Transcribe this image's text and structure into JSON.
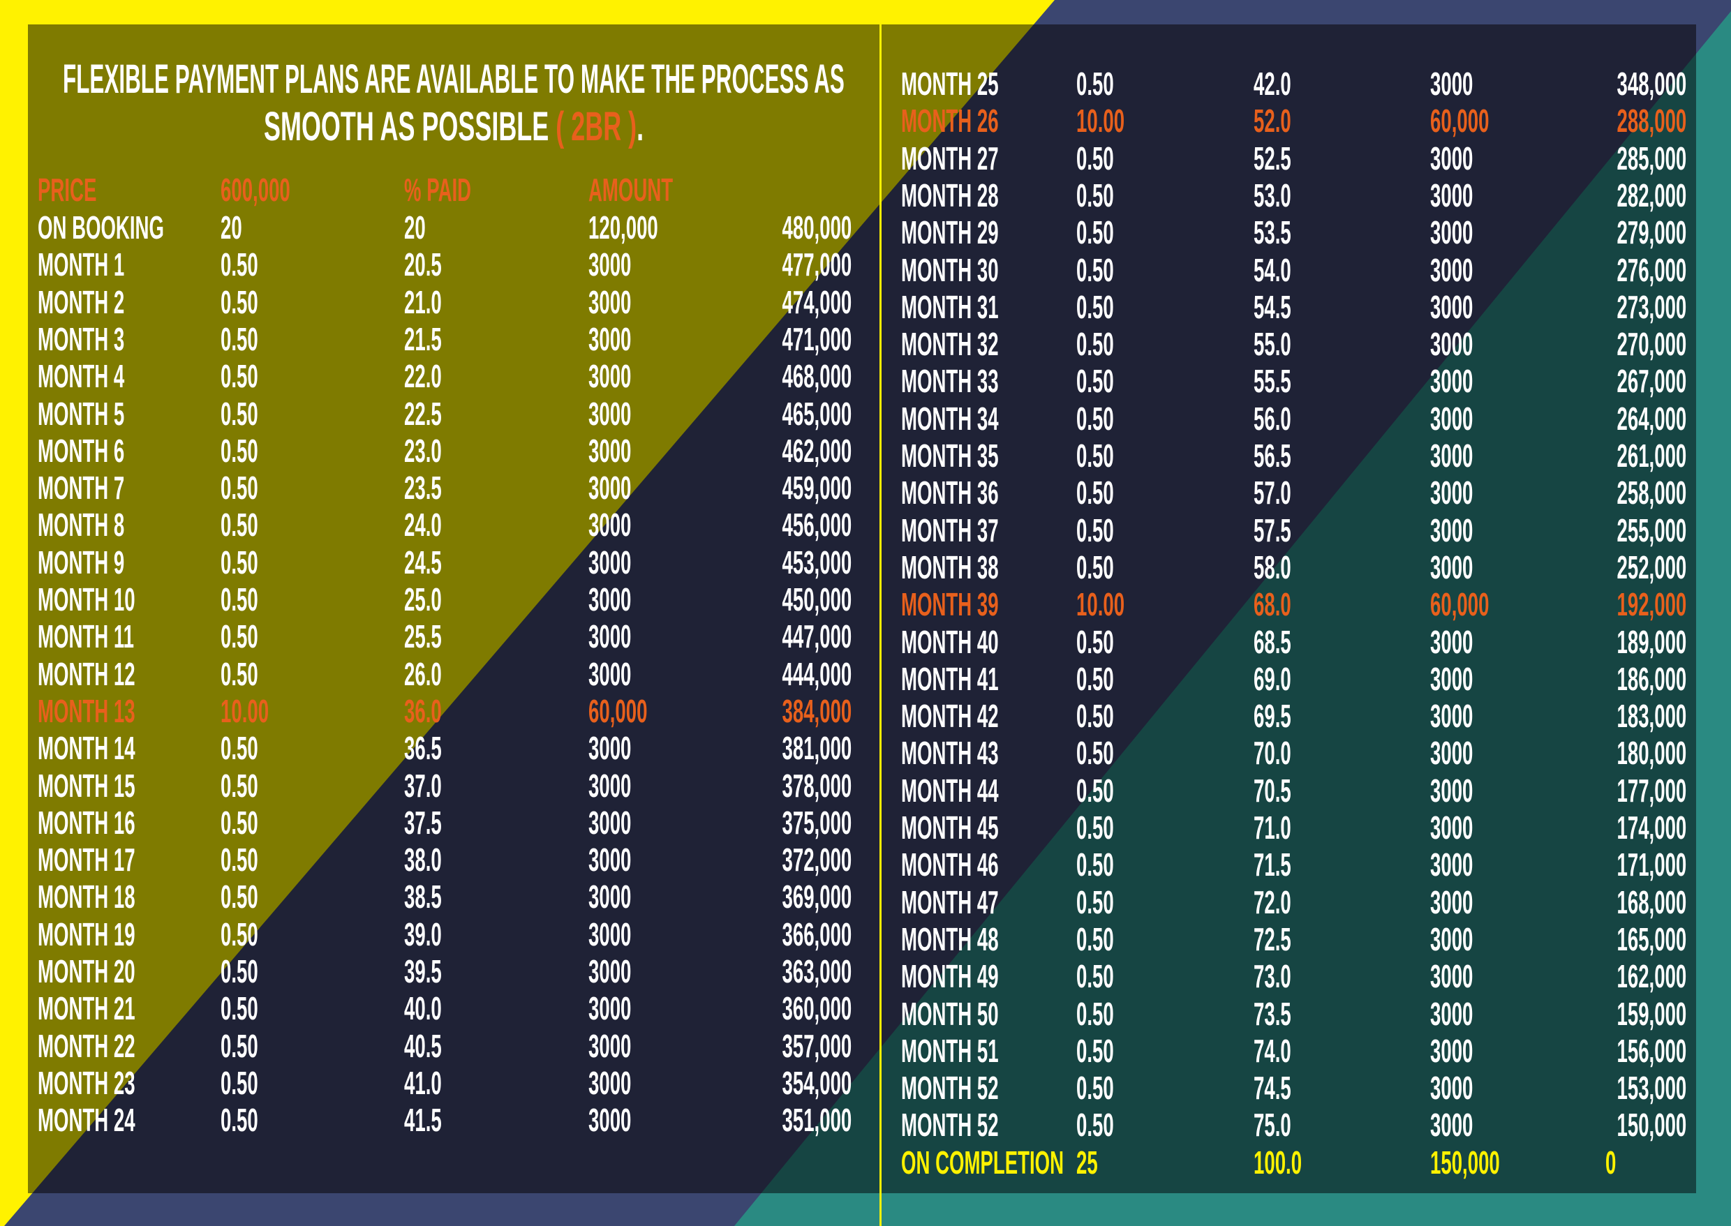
{
  "title": {
    "line1": "FLEXIBLE PAYMENT PLANS ARE AVAILABLE TO MAKE THE PROCESS AS",
    "line2": "SMOOTH AS POSSIBLE",
    "unit_type": "( 2BR )",
    "period": "."
  },
  "colors": {
    "accent_orange": "#e8601c",
    "accent_yellow": "#fff200",
    "olive": "#7f7b00",
    "navy": "#1f2236",
    "teal": "#164543"
  },
  "header": [
    "PRICE",
    "600,000",
    "% PAID",
    "AMOUNT",
    ""
  ],
  "left_rows": [
    {
      "cells": [
        "ON BOOKING",
        "20",
        "20",
        "120,000",
        "480,000"
      ]
    },
    {
      "cells": [
        "MONTH 1",
        "0.50",
        "20.5",
        "3000",
        "477,000"
      ]
    },
    {
      "cells": [
        "MONTH 2",
        "0.50",
        "21.0",
        "3000",
        "474,000"
      ]
    },
    {
      "cells": [
        "MONTH 3",
        "0.50",
        "21.5",
        "3000",
        "471,000"
      ]
    },
    {
      "cells": [
        "MONTH 4",
        "0.50",
        "22.0",
        "3000",
        "468,000"
      ]
    },
    {
      "cells": [
        "MONTH 5",
        "0.50",
        "22.5",
        "3000",
        "465,000"
      ]
    },
    {
      "cells": [
        "MONTH 6",
        "0.50",
        "23.0",
        "3000",
        "462,000"
      ]
    },
    {
      "cells": [
        "MONTH 7",
        "0.50",
        "23.5",
        "3000",
        "459,000"
      ]
    },
    {
      "cells": [
        "MONTH 8",
        "0.50",
        "24.0",
        "3000",
        "456,000"
      ]
    },
    {
      "cells": [
        "MONTH 9",
        "0.50",
        "24.5",
        "3000",
        "453,000"
      ]
    },
    {
      "cells": [
        "MONTH 10",
        "0.50",
        "25.0",
        "3000",
        "450,000"
      ]
    },
    {
      "cells": [
        "MONTH 11",
        "0.50",
        "25.5",
        "3000",
        "447,000"
      ]
    },
    {
      "cells": [
        "MONTH 12",
        "0.50",
        "26.0",
        "3000",
        "444,000"
      ]
    },
    {
      "cells": [
        "MONTH 13",
        "10.00",
        "36.0",
        "60,000",
        "384,000"
      ],
      "highlight": "orange"
    },
    {
      "cells": [
        "MONTH 14",
        "0.50",
        "36.5",
        "3000",
        "381,000"
      ]
    },
    {
      "cells": [
        "MONTH 15",
        "0.50",
        "37.0",
        "3000",
        "378,000"
      ]
    },
    {
      "cells": [
        "MONTH 16",
        "0.50",
        "37.5",
        "3000",
        "375,000"
      ]
    },
    {
      "cells": [
        "MONTH 17",
        "0.50",
        "38.0",
        "3000",
        "372,000"
      ]
    },
    {
      "cells": [
        "MONTH 18",
        "0.50",
        "38.5",
        "3000",
        "369,000"
      ]
    },
    {
      "cells": [
        "MONTH 19",
        "0.50",
        "39.0",
        "3000",
        "366,000"
      ]
    },
    {
      "cells": [
        "MONTH 20",
        "0.50",
        "39.5",
        "3000",
        "363,000"
      ]
    },
    {
      "cells": [
        "MONTH 21",
        "0.50",
        "40.0",
        "3000",
        "360,000"
      ]
    },
    {
      "cells": [
        "MONTH 22",
        "0.50",
        "40.5",
        "3000",
        "357,000"
      ]
    },
    {
      "cells": [
        "MONTH 23",
        "0.50",
        "41.0",
        "3000",
        "354,000"
      ]
    },
    {
      "cells": [
        "MONTH 24",
        "0.50",
        "41.5",
        "3000",
        "351,000"
      ]
    }
  ],
  "right_rows": [
    {
      "cells": [
        "MONTH 25",
        "0.50",
        "42.0",
        "3000",
        "348,000"
      ]
    },
    {
      "cells": [
        "MONTH 26",
        "10.00",
        "52.0",
        "60,000",
        "288,000"
      ],
      "highlight": "orange"
    },
    {
      "cells": [
        "MONTH 27",
        "0.50",
        "52.5",
        "3000",
        "285,000"
      ]
    },
    {
      "cells": [
        "MONTH 28",
        "0.50",
        "53.0",
        "3000",
        "282,000"
      ]
    },
    {
      "cells": [
        "MONTH 29",
        "0.50",
        "53.5",
        "3000",
        "279,000"
      ]
    },
    {
      "cells": [
        "MONTH 30",
        "0.50",
        "54.0",
        "3000",
        "276,000"
      ]
    },
    {
      "cells": [
        "MONTH 31",
        "0.50",
        "54.5",
        "3000",
        "273,000"
      ]
    },
    {
      "cells": [
        "MONTH 32",
        "0.50",
        "55.0",
        "3000",
        "270,000"
      ]
    },
    {
      "cells": [
        "MONTH 33",
        "0.50",
        "55.5",
        "3000",
        "267,000"
      ]
    },
    {
      "cells": [
        "MONTH 34",
        "0.50",
        "56.0",
        "3000",
        "264,000"
      ]
    },
    {
      "cells": [
        "MONTH 35",
        "0.50",
        "56.5",
        "3000",
        "261,000"
      ]
    },
    {
      "cells": [
        "MONTH 36",
        "0.50",
        "57.0",
        "3000",
        "258,000"
      ]
    },
    {
      "cells": [
        "MONTH 37",
        "0.50",
        "57.5",
        "3000",
        "255,000"
      ]
    },
    {
      "cells": [
        "MONTH 38",
        "0.50",
        "58.0",
        "3000",
        "252,000"
      ]
    },
    {
      "cells": [
        "MONTH 39",
        "10.00",
        "68.0",
        "60,000",
        "192,000"
      ],
      "highlight": "orange"
    },
    {
      "cells": [
        "MONTH 40",
        "0.50",
        "68.5",
        "3000",
        "189,000"
      ]
    },
    {
      "cells": [
        "MONTH 41",
        "0.50",
        "69.0",
        "3000",
        "186,000"
      ]
    },
    {
      "cells": [
        "MONTH 42",
        "0.50",
        "69.5",
        "3000",
        "183,000"
      ]
    },
    {
      "cells": [
        "MONTH 43",
        "0.50",
        "70.0",
        "3000",
        "180,000"
      ]
    },
    {
      "cells": [
        "MONTH 44",
        "0.50",
        "70.5",
        "3000",
        "177,000"
      ]
    },
    {
      "cells": [
        "MONTH 45",
        "0.50",
        "71.0",
        "3000",
        "174,000"
      ]
    },
    {
      "cells": [
        "MONTH 46",
        "0.50",
        "71.5",
        "3000",
        "171,000"
      ]
    },
    {
      "cells": [
        "MONTH 47",
        "0.50",
        "72.0",
        "3000",
        "168,000"
      ]
    },
    {
      "cells": [
        "MONTH 48",
        "0.50",
        "72.5",
        "3000",
        "165,000"
      ]
    },
    {
      "cells": [
        "MONTH 49",
        "0.50",
        "73.0",
        "3000",
        "162,000"
      ]
    },
    {
      "cells": [
        "MONTH 50",
        "0.50",
        "73.5",
        "3000",
        "159,000"
      ]
    },
    {
      "cells": [
        "MONTH 51",
        "0.50",
        "74.0",
        "3000",
        "156,000"
      ]
    },
    {
      "cells": [
        "MONTH 52",
        "0.50",
        "74.5",
        "3000",
        "153,000"
      ]
    },
    {
      "cells": [
        "MONTH 52",
        "0.50",
        "75.0",
        "3000",
        "150,000"
      ]
    },
    {
      "cells": [
        "ON COMPLETION",
        "25",
        "100.0",
        "150,000",
        "0"
      ],
      "highlight": "yellow"
    }
  ]
}
